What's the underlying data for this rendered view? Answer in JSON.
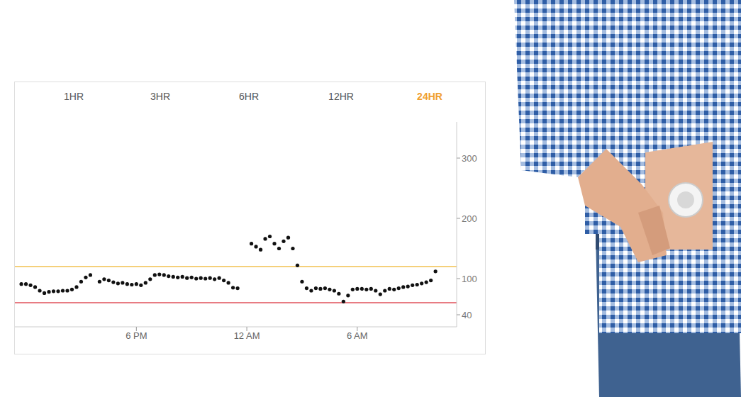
{
  "chart_data": {
    "type": "scatter",
    "tabs": [
      "1HR",
      "3HR",
      "6HR",
      "12HR",
      "24HR"
    ],
    "selected_tab": "24HR",
    "x": [
      11.75,
      12.0,
      12.25,
      12.5,
      12.75,
      13.0,
      13.25,
      13.5,
      13.75,
      14.0,
      14.25,
      14.5,
      14.75,
      15.0,
      15.25,
      15.5,
      16.0,
      16.25,
      16.5,
      16.75,
      17.0,
      17.25,
      17.5,
      17.75,
      18.0,
      18.25,
      18.5,
      18.75,
      19.0,
      19.25,
      19.5,
      19.75,
      20.0,
      20.25,
      20.5,
      20.75,
      21.0,
      21.25,
      21.5,
      21.75,
      22.0,
      22.25,
      22.5,
      22.75,
      23.0,
      23.25,
      23.5,
      24.25,
      24.5,
      24.75,
      25.0,
      25.25,
      25.5,
      25.75,
      26.0,
      26.25,
      26.5,
      26.75,
      27.0,
      27.25,
      27.5,
      27.75,
      28.0,
      28.25,
      28.5,
      28.75,
      29.0,
      29.25,
      29.5,
      29.75,
      30.0,
      30.25,
      30.5,
      30.75,
      31.0,
      31.25,
      31.5,
      31.75,
      32.0,
      32.25,
      32.5,
      32.75,
      33.0,
      33.25,
      33.5,
      33.75,
      34.0,
      34.25
    ],
    "values": [
      91,
      91,
      89,
      86,
      80,
      76,
      78,
      79,
      79,
      80,
      80,
      82,
      86,
      95,
      102,
      106,
      95,
      99,
      97,
      94,
      92,
      93,
      91,
      90,
      91,
      89,
      93,
      99,
      106,
      107,
      106,
      104,
      103,
      102,
      103,
      101,
      102,
      100,
      101,
      100,
      101,
      99,
      101,
      97,
      93,
      85,
      84,
      158,
      153,
      148,
      166,
      170,
      158,
      150,
      162,
      168,
      150,
      122,
      95,
      84,
      80,
      84,
      83,
      84,
      82,
      80,
      75,
      62,
      72,
      82,
      83,
      83,
      82,
      83,
      80,
      74,
      80,
      83,
      82,
      84,
      86,
      87,
      89,
      90,
      92,
      94,
      97,
      112
    ],
    "color": "#111111",
    "marker": "circle",
    "xlim": [
      11.4,
      35.4
    ],
    "xticks": [
      {
        "value": 18,
        "label": "6 PM"
      },
      {
        "value": 24,
        "label": "12 AM"
      },
      {
        "value": 30,
        "label": "6 AM"
      }
    ],
    "ylim": [
      20,
      360
    ],
    "yticks": [
      40,
      100,
      200,
      300
    ],
    "reference_lines": [
      {
        "value": 120,
        "color": "#f2c14e"
      },
      {
        "value": 60,
        "color": "#e0505a"
      }
    ]
  }
}
